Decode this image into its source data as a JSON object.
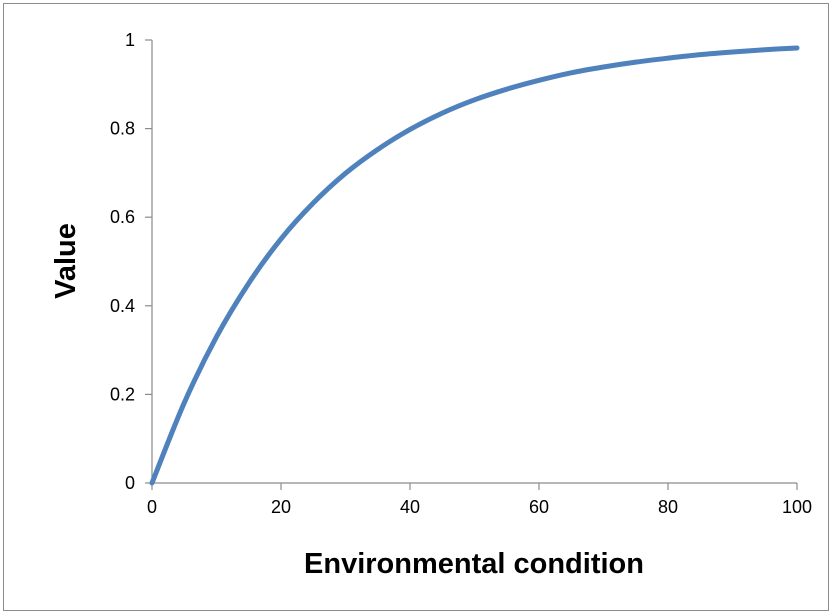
{
  "chart_data": {
    "type": "line",
    "title": "",
    "xlabel": "Environmental condition",
    "ylabel": "Value",
    "xlim": [
      0,
      100
    ],
    "ylim": [
      0,
      1
    ],
    "x_ticks": [
      0,
      20,
      40,
      60,
      80,
      100
    ],
    "y_ticks": [
      0,
      0.2,
      0.4,
      0.6,
      0.8,
      1
    ],
    "grid": false,
    "legend": "none",
    "series": [
      {
        "color": "#4f81bd",
        "x": [
          0,
          5,
          10,
          15,
          20,
          25,
          30,
          35,
          40,
          45,
          50,
          55,
          60,
          65,
          70,
          75,
          80,
          85,
          90,
          95,
          100
        ],
        "y": [
          0,
          0.181,
          0.33,
          0.451,
          0.551,
          0.632,
          0.699,
          0.753,
          0.798,
          0.835,
          0.865,
          0.889,
          0.909,
          0.926,
          0.939,
          0.95,
          0.959,
          0.967,
          0.973,
          0.978,
          0.982
        ]
      }
    ]
  }
}
